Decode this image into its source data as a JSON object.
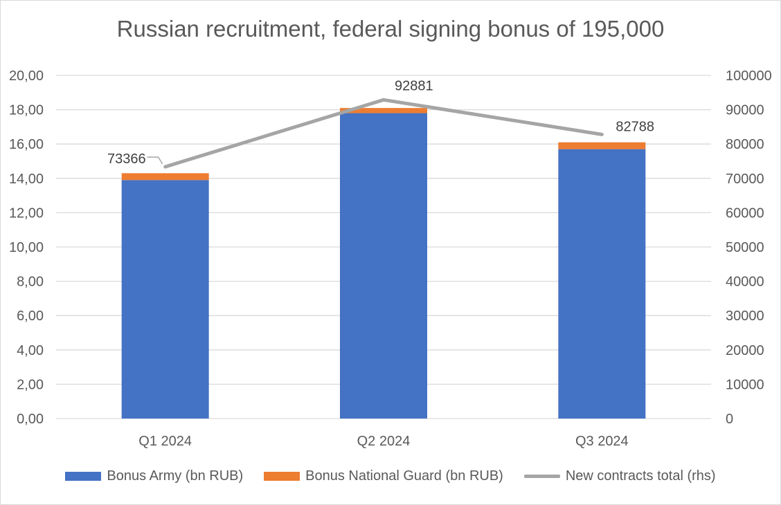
{
  "chart_data": {
    "type": "bar",
    "title": "Russian recruitment, federal signing bonus of 195,000",
    "categories": [
      "Q1 2024",
      "Q2 2024",
      "Q3 2024"
    ],
    "series": [
      {
        "name": "Bonus Army (bn RUB)",
        "type": "bar",
        "stack": "bonus",
        "axis": "left",
        "color": "#4472c4",
        "values": [
          13.9,
          17.8,
          15.7
        ]
      },
      {
        "name": "Bonus National Guard (bn RUB)",
        "type": "bar",
        "stack": "bonus",
        "axis": "left",
        "color": "#ed7d31",
        "values": [
          0.4,
          0.3,
          0.4
        ]
      },
      {
        "name": "New contracts total (rhs)",
        "type": "line",
        "axis": "right",
        "color": "#a5a5a5",
        "values": [
          73366,
          92881,
          82788
        ],
        "data_labels": [
          "73366",
          "92881",
          "82788"
        ]
      }
    ],
    "y_left": {
      "min": 0,
      "max": 20,
      "step": 2,
      "tick_labels": [
        "0,00",
        "2,00",
        "4,00",
        "6,00",
        "8,00",
        "10,00",
        "12,00",
        "14,00",
        "16,00",
        "18,00",
        "20,00"
      ]
    },
    "y_right": {
      "min": 0,
      "max": 100000,
      "step": 10000,
      "tick_labels": [
        "0",
        "10000",
        "20000",
        "30000",
        "40000",
        "50000",
        "60000",
        "70000",
        "80000",
        "90000",
        "100000"
      ]
    },
    "grid": true,
    "legend_position": "bottom",
    "text_color": "#595959",
    "grid_color": "#d9d9d9"
  }
}
